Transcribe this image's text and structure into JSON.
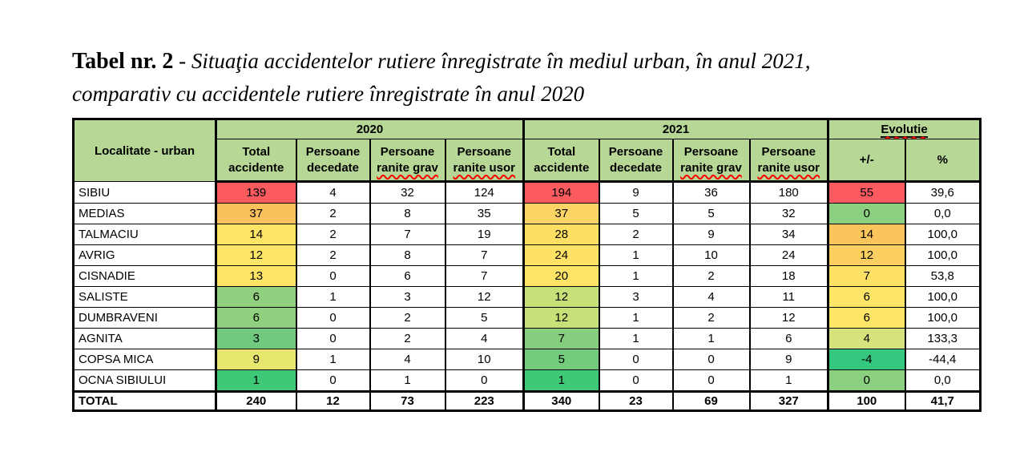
{
  "title": {
    "label_bold": "Tabel nr. 2",
    "separator": " - ",
    "line1_italic": "Situaţia accidentelor rutiere înregistrate în mediul urban, în anul 2021,",
    "line2_italic": "comparativ cu accidentele rutiere înregistrate în anul 2020"
  },
  "colors": {
    "header_green": "#B6D795",
    "scale_red": "#FB5A5F",
    "scale_orange": "#FBC15C",
    "scale_yellow": "#FDE366",
    "scale_emerald": "#3FC878",
    "spellcheck_red": "#FF0000",
    "border_black": "#000000"
  },
  "table": {
    "corner_header": "Localitate - urban",
    "group_headers": {
      "g2020": "2020",
      "g2021": "2021",
      "evolutie": "Evolutie"
    },
    "sub_headers": {
      "total_line1": "Total",
      "total_line2": "accidente",
      "decedate_line1": "Persoane",
      "decedate_line2": "decedate",
      "grav_line1": "Persoane",
      "grav_line2": "ranite grav",
      "usor_line1": "Persoane",
      "usor_line2": "ranite usor",
      "plus_minus": "+/-",
      "percent": "%"
    },
    "rows": [
      {
        "name": "SIBIU",
        "cells": [
          {
            "v": "139",
            "bg": "#FB5A5F"
          },
          {
            "v": "4"
          },
          {
            "v": "32"
          },
          {
            "v": "124"
          },
          {
            "v": "194",
            "bg": "#FB5A5F"
          },
          {
            "v": "9"
          },
          {
            "v": "36"
          },
          {
            "v": "180"
          },
          {
            "v": "55",
            "bg": "#FB5A5F"
          },
          {
            "v": "39,6"
          }
        ]
      },
      {
        "name": "MEDIAS",
        "cells": [
          {
            "v": "37",
            "bg": "#FBC15C"
          },
          {
            "v": "2"
          },
          {
            "v": "8"
          },
          {
            "v": "35"
          },
          {
            "v": "37",
            "bg": "#FCD466"
          },
          {
            "v": "5"
          },
          {
            "v": "5"
          },
          {
            "v": "32"
          },
          {
            "v": "0",
            "bg": "#8BD07F"
          },
          {
            "v": "0,0"
          }
        ]
      },
      {
        "name": "TALMACIU",
        "cells": [
          {
            "v": "14",
            "bg": "#FDE366"
          },
          {
            "v": "2"
          },
          {
            "v": "7"
          },
          {
            "v": "19"
          },
          {
            "v": "28",
            "bg": "#FDE063"
          },
          {
            "v": "2"
          },
          {
            "v": "9"
          },
          {
            "v": "34"
          },
          {
            "v": "14",
            "bg": "#FAC55D"
          },
          {
            "v": "100,0"
          }
        ]
      },
      {
        "name": "AVRIG",
        "cells": [
          {
            "v": "12",
            "bg": "#FDE567"
          },
          {
            "v": "2"
          },
          {
            "v": "8"
          },
          {
            "v": "7"
          },
          {
            "v": "24",
            "bg": "#FDE265"
          },
          {
            "v": "1"
          },
          {
            "v": "10"
          },
          {
            "v": "24"
          },
          {
            "v": "12",
            "bg": "#FBCE60"
          },
          {
            "v": "100,0"
          }
        ]
      },
      {
        "name": "CISNADIE",
        "cells": [
          {
            "v": "13",
            "bg": "#FDE466"
          },
          {
            "v": "0"
          },
          {
            "v": "6"
          },
          {
            "v": "7"
          },
          {
            "v": "20",
            "bg": "#FDE466"
          },
          {
            "v": "1"
          },
          {
            "v": "2"
          },
          {
            "v": "18"
          },
          {
            "v": "7",
            "bg": "#FDE164"
          },
          {
            "v": "53,8"
          }
        ]
      },
      {
        "name": "SALISTE",
        "cells": [
          {
            "v": "6",
            "bg": "#90D07F"
          },
          {
            "v": "1"
          },
          {
            "v": "3"
          },
          {
            "v": "12"
          },
          {
            "v": "12",
            "bg": "#C8E078"
          },
          {
            "v": "3"
          },
          {
            "v": "4"
          },
          {
            "v": "11"
          },
          {
            "v": "6",
            "bg": "#FDE667"
          },
          {
            "v": "100,0"
          }
        ]
      },
      {
        "name": "DUMBRAVENI",
        "cells": [
          {
            "v": "6",
            "bg": "#90D07F"
          },
          {
            "v": "0"
          },
          {
            "v": "2"
          },
          {
            "v": "5"
          },
          {
            "v": "12",
            "bg": "#C8E078"
          },
          {
            "v": "1"
          },
          {
            "v": "2"
          },
          {
            "v": "12"
          },
          {
            "v": "6",
            "bg": "#FDE667"
          },
          {
            "v": "100,0"
          }
        ]
      },
      {
        "name": "AGNITA",
        "cells": [
          {
            "v": "3",
            "bg": "#6FCA7D"
          },
          {
            "v": "0"
          },
          {
            "v": "2"
          },
          {
            "v": "4"
          },
          {
            "v": "7",
            "bg": "#84CE7E"
          },
          {
            "v": "1"
          },
          {
            "v": "1"
          },
          {
            "v": "6"
          },
          {
            "v": "4",
            "bg": "#D6E37C"
          },
          {
            "v": "133,3"
          }
        ]
      },
      {
        "name": "COPSA MICA",
        "cells": [
          {
            "v": "9",
            "bg": "#E7E76F"
          },
          {
            "v": "1"
          },
          {
            "v": "4"
          },
          {
            "v": "10"
          },
          {
            "v": "5",
            "bg": "#73CB7D"
          },
          {
            "v": "0"
          },
          {
            "v": "0"
          },
          {
            "v": "9"
          },
          {
            "v": "-4",
            "bg": "#35C77D"
          },
          {
            "v": "-44,4"
          }
        ]
      },
      {
        "name": "OCNA SIBIULUI",
        "cells": [
          {
            "v": "1",
            "bg": "#3FC878"
          },
          {
            "v": "0"
          },
          {
            "v": "1"
          },
          {
            "v": "0"
          },
          {
            "v": "1",
            "bg": "#3FC878"
          },
          {
            "v": "0"
          },
          {
            "v": "0"
          },
          {
            "v": "1"
          },
          {
            "v": "0",
            "bg": "#8BD07F"
          },
          {
            "v": "0,0"
          }
        ]
      }
    ],
    "total_row": {
      "label": "TOTAL",
      "values": [
        "240",
        "12",
        "73",
        "223",
        "340",
        "23",
        "69",
        "327",
        "100",
        "41,7"
      ]
    }
  }
}
